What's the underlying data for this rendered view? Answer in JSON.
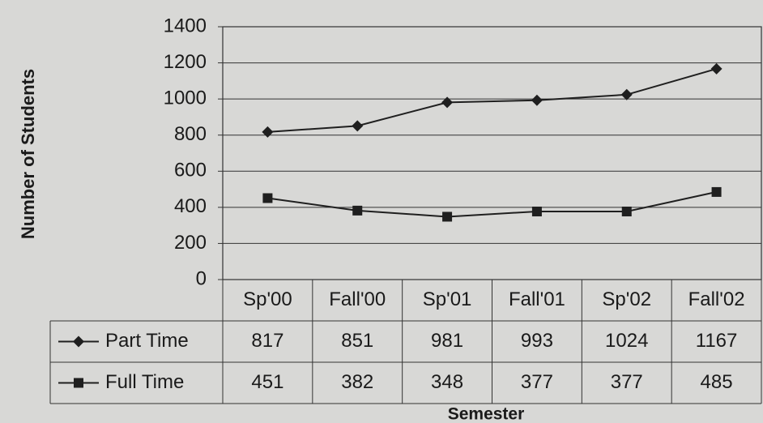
{
  "chart_data": {
    "type": "line",
    "xlabel": "Semester",
    "ylabel": "Number of Students",
    "categories": [
      "Sp'00",
      "Fall'00",
      "Sp'01",
      "Fall'01",
      "Sp'02",
      "Fall'02"
    ],
    "series": [
      {
        "name": "Part Time",
        "color": "#1f1f1f",
        "marker": "diamond",
        "values": [
          817,
          851,
          981,
          993,
          1024,
          1167
        ]
      },
      {
        "name": "Full Time",
        "color": "#1f1f1f",
        "marker": "square",
        "values": [
          451,
          382,
          348,
          377,
          377,
          485
        ]
      }
    ],
    "ylim": [
      0,
      1400
    ],
    "yticks": [
      0,
      200,
      400,
      600,
      800,
      1000,
      1200,
      1400
    ],
    "grid": true,
    "data_table": true
  }
}
